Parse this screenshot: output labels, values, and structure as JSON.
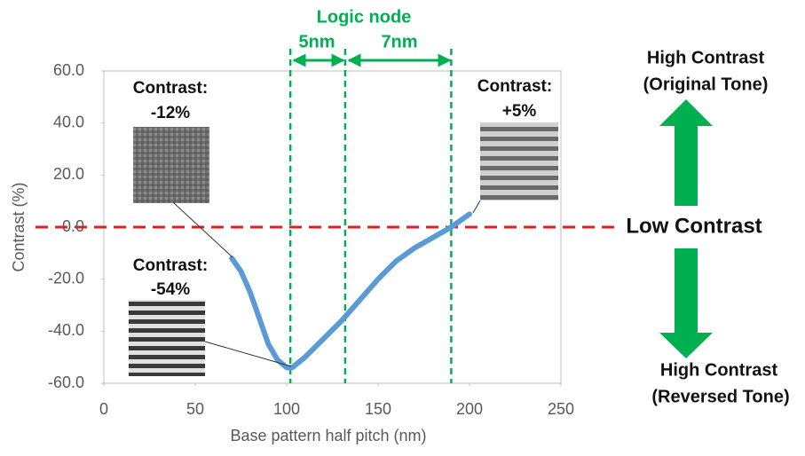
{
  "chart_data": {
    "type": "line",
    "xlabel": "Base pattern half pitch (nm)",
    "ylabel": "Contrast (%)",
    "x": [
      70,
      75,
      80,
      85,
      90,
      95,
      100,
      103,
      110,
      120,
      130,
      140,
      150,
      160,
      170,
      180,
      190,
      200
    ],
    "values": [
      -12,
      -17,
      -25,
      -35,
      -45,
      -51,
      -54,
      -54,
      -50,
      -43,
      -36,
      -28,
      -20,
      -13,
      -8,
      -4,
      0,
      5
    ],
    "color": "#5b9bd5",
    "xlim": [
      0,
      250
    ],
    "xticks": [
      0,
      50,
      100,
      150,
      200,
      250
    ],
    "ylim": [
      -60,
      60
    ],
    "yticks": [
      {
        "value": 60,
        "label": "60.0"
      },
      {
        "value": 40,
        "label": "40.0"
      },
      {
        "value": 20,
        "label": "20.0"
      },
      {
        "value": 0,
        "label": "0.0"
      },
      {
        "value": -20,
        "label": "-20.0"
      },
      {
        "value": -40,
        "label": "-40.0"
      },
      {
        "value": -60,
        "label": "-60.0"
      }
    ],
    "hline": 0,
    "hline_color": "#e02020",
    "vlines": [
      102,
      132,
      190
    ],
    "vline_color": "#00b050",
    "annotations": {
      "logic_node": "Logic node",
      "node_5": "5nm",
      "node_7": "7nm",
      "contrast_labels": [
        [
          "Contrast:",
          "-12%"
        ],
        [
          "Contrast:",
          "+5%"
        ],
        [
          "Contrast:",
          "-54%"
        ]
      ],
      "top_label": [
        "High Contrast",
        "(Original Tone)"
      ],
      "middle_label": "Low Contrast",
      "bottom_label": [
        "High Contrast",
        "(Reversed Tone)"
      ]
    }
  }
}
